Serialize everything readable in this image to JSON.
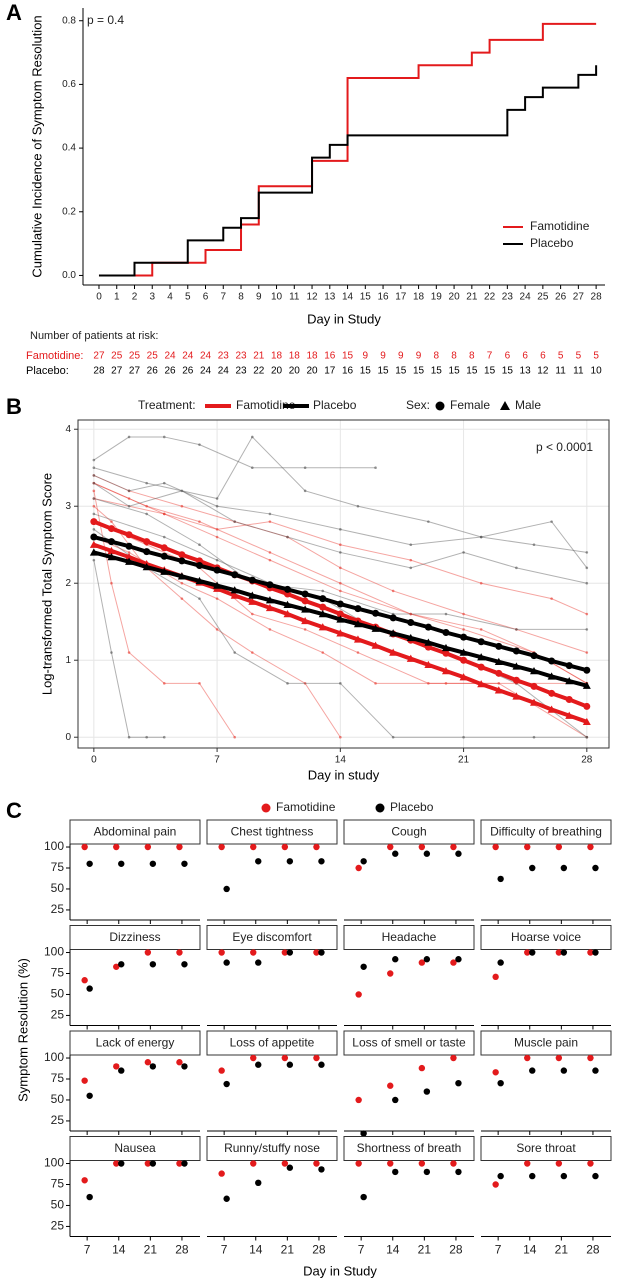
{
  "chart_data": [
    {
      "type": "step",
      "panel_label": "A",
      "annotation": "p = 0.4",
      "xlabel": "Day in Study",
      "ylabel": "Cumulative Incidence of Symptom Resolution",
      "x": [
        0,
        1,
        2,
        3,
        4,
        5,
        6,
        7,
        8,
        9,
        10,
        11,
        12,
        13,
        14,
        15,
        16,
        17,
        18,
        19,
        20,
        21,
        22,
        23,
        24,
        25,
        26,
        27,
        28
      ],
      "xlim": [
        -0.9,
        28.5
      ],
      "xticks": [
        0,
        1,
        2,
        3,
        4,
        5,
        6,
        7,
        8,
        9,
        10,
        11,
        12,
        13,
        14,
        15,
        16,
        17,
        18,
        19,
        20,
        21,
        22,
        23,
        24,
        25,
        26,
        27,
        28
      ],
      "ylim": [
        -0.03,
        0.84
      ],
      "yticks": [
        {
          "value": 0,
          "label": "0.0"
        },
        0.2,
        0.4,
        0.6,
        0.8
      ],
      "legend": "bottom-right",
      "series": [
        {
          "name": "Famotidine",
          "color": "#e31a1c",
          "values": [
            0,
            0,
            0,
            0.04,
            0.04,
            0.04,
            0.08,
            0.08,
            0.16,
            0.28,
            0.28,
            0.28,
            0.36,
            0.36,
            0.62,
            0.62,
            0.62,
            0.62,
            0.66,
            0.66,
            0.66,
            0.7,
            0.74,
            0.74,
            0.74,
            0.79,
            0.79,
            0.79,
            0.79
          ]
        },
        {
          "name": "Placebo",
          "color": "#000000",
          "values": [
            0,
            0,
            0.04,
            0.04,
            0.04,
            0.11,
            0.11,
            0.15,
            0.18,
            0.26,
            0.26,
            0.26,
            0.37,
            0.41,
            0.44,
            0.44,
            0.44,
            0.44,
            0.44,
            0.44,
            0.44,
            0.44,
            0.44,
            0.52,
            0.56,
            0.59,
            0.59,
            0.63,
            0.66
          ]
        }
      ],
      "risk_table": {
        "title": "Number of patients at risk:",
        "rows": [
          {
            "label": "Famotidine:",
            "color": "#e31a1c",
            "values": [
              27,
              25,
              25,
              25,
              24,
              24,
              24,
              23,
              23,
              21,
              18,
              18,
              18,
              16,
              15,
              9,
              9,
              9,
              9,
              8,
              8,
              8,
              7,
              6,
              6,
              6,
              5,
              5,
              5
            ]
          },
          {
            "label": "Placebo:",
            "color": "#000000",
            "values": [
              28,
              27,
              27,
              26,
              26,
              26,
              24,
              24,
              23,
              22,
              20,
              20,
              20,
              17,
              16,
              15,
              15,
              15,
              15,
              15,
              15,
              15,
              15,
              15,
              13,
              12,
              11,
              11,
              10
            ]
          }
        ]
      }
    },
    {
      "type": "line",
      "panel_label": "B",
      "annotation": "p < 0.0001",
      "xlabel": "Day in study",
      "ylabel": "Log-transformed Total Symptom Score",
      "xlim": [
        -0.9,
        29.26
      ],
      "xticks": [
        0,
        7,
        14,
        21,
        28
      ],
      "ylim": [
        -0.14,
        4.12
      ],
      "yticks": [
        0,
        1,
        2,
        3,
        4
      ],
      "grid": true,
      "legend": {
        "treatment_title": "Treatment:",
        "treatments": [
          {
            "name": "Famotidine",
            "color": "#e31a1c"
          },
          {
            "name": "Placebo",
            "color": "#000000"
          }
        ],
        "sex_title": "Sex:",
        "sexes": [
          {
            "name": "Female",
            "marker": "circle"
          },
          {
            "name": "Male",
            "marker": "triangle"
          }
        ]
      },
      "x": [
        0,
        1,
        2,
        3,
        4,
        5,
        6,
        7,
        8,
        9,
        10,
        11,
        12,
        13,
        14,
        15,
        16,
        17,
        18,
        19,
        20,
        21,
        22,
        23,
        24,
        25,
        26,
        27,
        28
      ],
      "series": [
        {
          "treatment": 0,
          "sex": 0,
          "values": [
            2.8,
            2.71,
            2.63,
            2.54,
            2.46,
            2.37,
            2.29,
            2.2,
            2.11,
            2.03,
            1.94,
            1.86,
            1.77,
            1.69,
            1.6,
            1.51,
            1.43,
            1.34,
            1.26,
            1.17,
            1.09,
            1.0,
            0.91,
            0.83,
            0.74,
            0.66,
            0.57,
            0.49,
            0.4
          ]
        },
        {
          "treatment": 0,
          "sex": 1,
          "values": [
            2.5,
            2.42,
            2.34,
            2.25,
            2.17,
            2.09,
            2.01,
            1.93,
            1.84,
            1.76,
            1.68,
            1.6,
            1.51,
            1.43,
            1.35,
            1.27,
            1.19,
            1.1,
            1.02,
            0.94,
            0.86,
            0.78,
            0.69,
            0.61,
            0.53,
            0.45,
            0.36,
            0.28,
            0.2
          ]
        },
        {
          "treatment": 1,
          "sex": 0,
          "values": [
            2.6,
            2.54,
            2.48,
            2.41,
            2.35,
            2.29,
            2.23,
            2.17,
            2.11,
            2.04,
            1.98,
            1.92,
            1.86,
            1.8,
            1.73,
            1.67,
            1.61,
            1.55,
            1.49,
            1.43,
            1.36,
            1.3,
            1.24,
            1.18,
            1.12,
            1.06,
            0.99,
            0.93,
            0.87
          ]
        },
        {
          "treatment": 1,
          "sex": 1,
          "values": [
            2.4,
            2.34,
            2.28,
            2.21,
            2.15,
            2.09,
            2.03,
            1.97,
            1.91,
            1.84,
            1.78,
            1.72,
            1.66,
            1.6,
            1.53,
            1.47,
            1.41,
            1.35,
            1.29,
            1.23,
            1.16,
            1.1,
            1.04,
            0.98,
            0.92,
            0.86,
            0.79,
            0.73,
            0.67
          ]
        }
      ],
      "trajectories": [
        {
          "color": "#e8382e",
          "x": [
            0,
            2,
            4,
            7,
            10,
            14,
            18,
            21,
            25,
            28
          ],
          "values": [
            3.3,
            3.1,
            2.9,
            2.6,
            2.3,
            1.9,
            1.6,
            1.4,
            1.1,
            0.7
          ]
        },
        {
          "color": "#e8382e",
          "x": [
            0,
            1,
            3,
            5,
            7,
            9,
            12,
            14
          ],
          "values": [
            3.0,
            2.8,
            2.2,
            1.8,
            1.4,
            1.1,
            0.7,
            0
          ]
        },
        {
          "color": "#e8382e",
          "x": [
            0,
            2,
            5,
            8,
            11,
            14,
            17,
            21,
            24,
            28
          ],
          "values": [
            3.4,
            3.2,
            3.0,
            2.8,
            2.6,
            2.2,
            1.9,
            1.6,
            1.4,
            1.1
          ]
        },
        {
          "color": "#e8382e",
          "x": [
            0,
            3,
            6,
            9,
            12,
            15,
            19,
            23,
            28
          ],
          "values": [
            2.8,
            2.5,
            2.2,
            1.6,
            1.4,
            1.1,
            0.7,
            0.7,
            0
          ]
        },
        {
          "color": "#e8382e",
          "x": [
            0,
            1,
            2,
            4,
            6,
            8
          ],
          "values": [
            3.2,
            2.0,
            1.1,
            0.7,
            0.7,
            0
          ]
        },
        {
          "color": "#e8382e",
          "x": [
            0,
            4,
            7,
            10,
            14,
            18,
            22,
            26,
            28
          ],
          "values": [
            3.1,
            2.9,
            2.7,
            2.8,
            2.5,
            2.3,
            2.0,
            1.8,
            1.6
          ]
        },
        {
          "color": "#e8382e",
          "x": [
            0,
            2,
            5,
            7,
            10,
            13,
            16,
            20,
            24,
            28
          ],
          "values": [
            2.6,
            2.4,
            2.0,
            1.8,
            1.4,
            1.1,
            0.7,
            0.7,
            0.7,
            0.7
          ]
        },
        {
          "color": "#e8382e",
          "x": [
            0,
            3,
            6,
            10,
            14,
            18,
            22,
            25,
            28
          ],
          "values": [
            3.3,
            3.0,
            2.8,
            2.4,
            2.0,
            1.6,
            1.4,
            1.1,
            0.7
          ]
        },
        {
          "color": "#555555",
          "x": [
            0,
            2,
            4,
            6,
            9,
            12,
            16
          ],
          "values": [
            3.6,
            3.9,
            3.9,
            3.8,
            3.5,
            3.5,
            3.5
          ]
        },
        {
          "color": "#555555",
          "x": [
            0,
            3,
            7,
            9,
            12,
            15,
            19,
            22,
            25,
            28
          ],
          "values": [
            3.5,
            3.3,
            3.1,
            3.9,
            3.2,
            3.0,
            2.8,
            2.6,
            2.5,
            2.4
          ]
        },
        {
          "color": "#555555",
          "x": [
            0,
            1,
            2,
            3,
            4
          ],
          "values": [
            2.3,
            1.1,
            0,
            0,
            0
          ]
        },
        {
          "color": "#555555",
          "x": [
            0,
            3,
            6,
            9,
            13,
            17,
            20,
            24,
            28
          ],
          "values": [
            3.1,
            2.9,
            2.5,
            2.0,
            1.9,
            1.6,
            1.6,
            1.4,
            1.4
          ]
        },
        {
          "color": "#555555",
          "x": [
            0,
            2,
            5,
            8,
            11,
            14,
            18,
            21,
            24,
            28
          ],
          "values": [
            3.3,
            3.0,
            3.2,
            2.8,
            2.6,
            2.4,
            2.2,
            2.4,
            2.2,
            2.0
          ]
        },
        {
          "color": "#555555",
          "x": [
            0,
            4,
            7,
            10,
            13,
            16,
            20,
            24,
            28
          ],
          "values": [
            2.9,
            2.6,
            2.3,
            2.0,
            1.8,
            1.4,
            1.1,
            0.7,
            0
          ]
        },
        {
          "color": "#555555",
          "x": [
            0,
            2,
            4,
            7,
            10,
            14,
            18,
            22,
            26,
            28
          ],
          "values": [
            3.4,
            3.2,
            3.3,
            3.0,
            2.9,
            2.7,
            2.5,
            2.6,
            2.8,
            2.2
          ]
        },
        {
          "color": "#555555",
          "x": [
            0,
            3,
            6,
            8,
            11,
            14,
            17,
            21,
            25,
            28
          ],
          "values": [
            2.7,
            2.2,
            1.8,
            1.1,
            0.7,
            0.7,
            0,
            0,
            0,
            0
          ]
        }
      ]
    },
    {
      "type": "dot",
      "panel_label": "C",
      "xlabel": "Day in Study",
      "ylabel": "Symptom Resolution (%)",
      "legend": [
        {
          "name": "Famotidine",
          "color": "#e31a1c"
        },
        {
          "name": "Placebo",
          "color": "#000000"
        }
      ],
      "x": [
        7,
        14,
        21,
        28
      ],
      "xlim": [
        3.2,
        32
      ],
      "xticks": [
        7,
        14,
        21,
        28
      ],
      "ylim": [
        13,
        103.6
      ],
      "yticks": [
        25,
        50,
        75,
        100
      ],
      "facets": [
        {
          "title": "Abdominal pain",
          "series": [
            [
              100,
              100,
              100,
              100
            ],
            [
              80,
              80,
              80,
              80
            ]
          ]
        },
        {
          "title": "Chest tightness",
          "series": [
            [
              100,
              100,
              100,
              100
            ],
            [
              50,
              83,
              83,
              83
            ]
          ]
        },
        {
          "title": "Cough",
          "series": [
            [
              75,
              100,
              100,
              100
            ],
            [
              83,
              92,
              92,
              92
            ]
          ]
        },
        {
          "title": "Difficulty of breathing",
          "series": [
            [
              100,
              100,
              100,
              100
            ],
            [
              62,
              75,
              75,
              75
            ]
          ]
        },
        {
          "title": "Dizziness",
          "series": [
            [
              67,
              83,
              100,
              100
            ],
            [
              57,
              86,
              86,
              86
            ]
          ]
        },
        {
          "title": "Eye discomfort",
          "series": [
            [
              100,
              100,
              100,
              100
            ],
            [
              88,
              88,
              100,
              100
            ]
          ]
        },
        {
          "title": "Headache",
          "series": [
            [
              50,
              75,
              88,
              88
            ],
            [
              83,
              92,
              92,
              92
            ]
          ]
        },
        {
          "title": "Hoarse voice",
          "series": [
            [
              71,
              100,
              100,
              100
            ],
            [
              88,
              100,
              100,
              100
            ]
          ]
        },
        {
          "title": "Lack of energy",
          "series": [
            [
              73,
              90,
              95,
              95
            ],
            [
              55,
              85,
              90,
              90
            ]
          ]
        },
        {
          "title": "Loss of appetite",
          "series": [
            [
              85,
              100,
              100,
              100
            ],
            [
              69,
              92,
              92,
              92
            ]
          ]
        },
        {
          "title": "Loss of smell or taste",
          "series": [
            [
              50,
              67,
              88,
              100
            ],
            [
              10,
              50,
              60,
              70
            ]
          ]
        },
        {
          "title": "Muscle pain",
          "series": [
            [
              83,
              100,
              100,
              100
            ],
            [
              70,
              85,
              85,
              85
            ]
          ]
        },
        {
          "title": "Nausea",
          "series": [
            [
              80,
              100,
              100,
              100
            ],
            [
              60,
              100,
              100,
              100
            ]
          ]
        },
        {
          "title": "Runny/stuffy nose",
          "series": [
            [
              88,
              100,
              100,
              100
            ],
            [
              58,
              77,
              95,
              93
            ]
          ]
        },
        {
          "title": "Shortness of breath",
          "series": [
            [
              100,
              100,
              100,
              100
            ],
            [
              60,
              90,
              90,
              90
            ]
          ]
        },
        {
          "title": "Sore throat",
          "series": [
            [
              75,
              100,
              100,
              100
            ],
            [
              85,
              85,
              85,
              85
            ]
          ]
        }
      ]
    }
  ]
}
